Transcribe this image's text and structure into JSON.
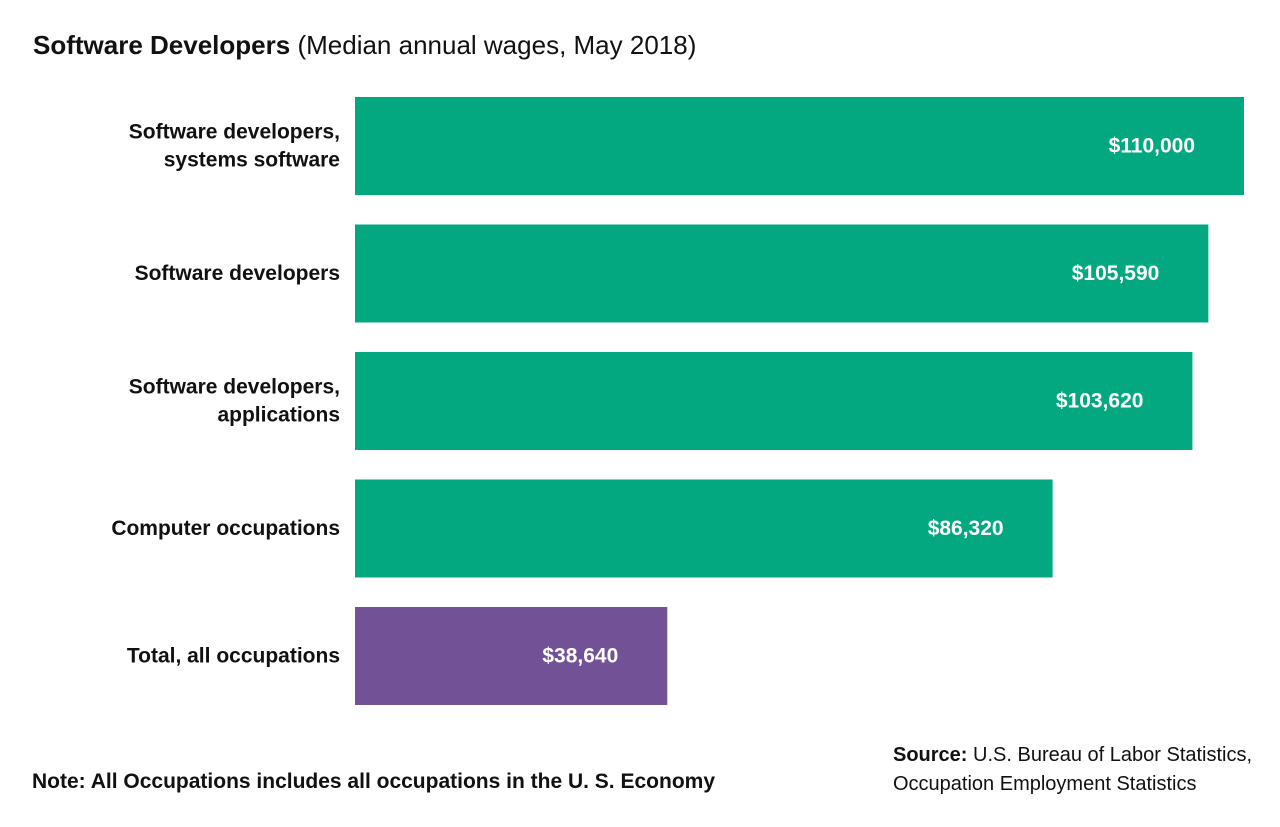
{
  "chart_data": {
    "type": "bar",
    "orientation": "horizontal",
    "title": "Software Developers",
    "subtitle": "(Median annual wages, May 2018)",
    "categories": [
      [
        "Software developers,",
        "systems software"
      ],
      [
        "Software developers"
      ],
      [
        "Software developers,",
        "applications"
      ],
      [
        "Computer occupations"
      ],
      [
        "Total, all occupations"
      ]
    ],
    "values": [
      110000,
      105590,
      103620,
      86320,
      38640
    ],
    "value_labels": [
      "$110,000",
      "$105,590",
      "$103,620",
      "$86,320",
      "$38,640"
    ],
    "bar_colors": [
      "#04a880",
      "#04a880",
      "#04a880",
      "#04a880",
      "#725196"
    ],
    "xlim": [
      0,
      110000
    ],
    "grid": false,
    "legend": "none"
  },
  "note": "Note: All Occupations includes all occupations in the U. S. Economy",
  "source": {
    "label": "Source:",
    "line1": "U.S. Bureau of Labor Statistics,",
    "line2": "Occupation Employment Statistics"
  }
}
